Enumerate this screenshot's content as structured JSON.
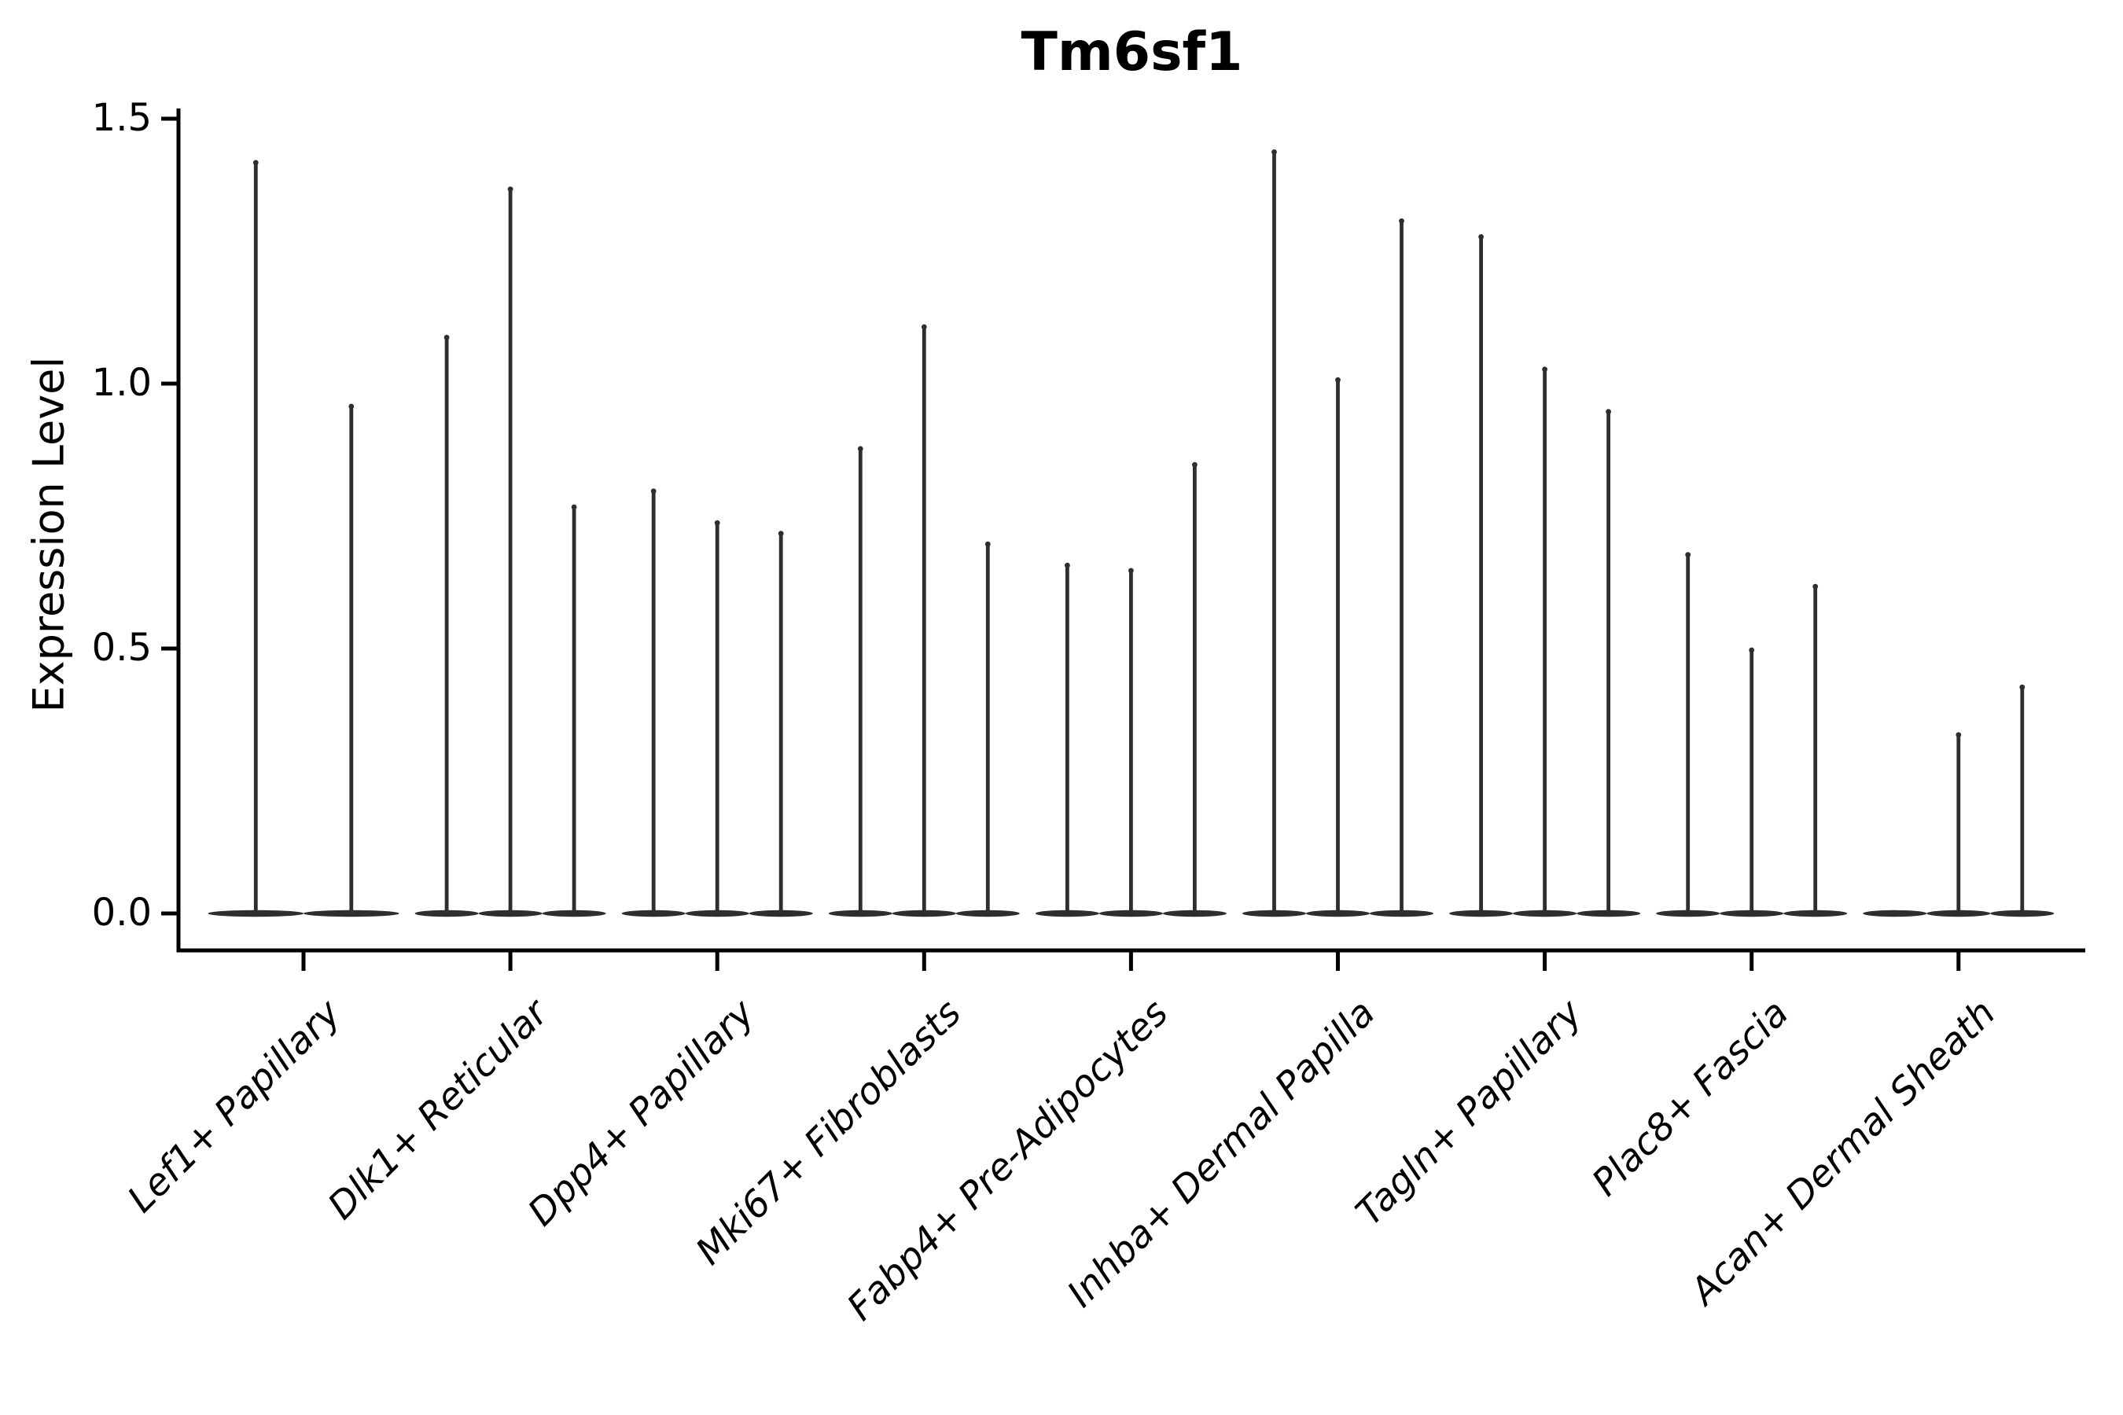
{
  "title": "Tm6sf1",
  "colors": {
    "violin": "#2e2e2e",
    "axis": "#000000",
    "text": "#000000",
    "background": "#ffffff"
  },
  "chart_data": {
    "type": "violin",
    "title": "Tm6sf1",
    "xlabel": "",
    "ylabel": "Expression Level",
    "yticks": [
      0.0,
      0.5,
      1.0,
      1.5
    ],
    "ylim": [
      -0.07,
      1.52
    ],
    "grid": false,
    "legend": "none",
    "description": "Needle-thin violins (sparse expression); each violin is a flat base at 0 with a thin spike to its maximum expression value.",
    "categories": [
      "Lef1+ Papillary",
      "Dlk1+ Reticular",
      "Dpp4+ Papillary",
      "Mki67+ Fibroblasts",
      "Fabp4+ Pre-Adipocytes",
      "Inhba+ Dermal Papilla",
      "Tagln+ Papillary",
      "Plac8+ Fascia",
      "Acan+ Dermal Sheath"
    ],
    "groups": [
      {
        "label": "Lef1+ Papillary",
        "violin_maxima": [
          1.42,
          0.96
        ]
      },
      {
        "label": "Dlk1+ Reticular",
        "violin_maxima": [
          1.09,
          1.37,
          0.77
        ]
      },
      {
        "label": "Dpp4+ Papillary",
        "violin_maxima": [
          0.8,
          0.74,
          0.72
        ]
      },
      {
        "label": "Mki67+ Fibroblasts",
        "violin_maxima": [
          0.88,
          1.11,
          0.7
        ]
      },
      {
        "label": "Fabp4+ Pre-Adipocytes",
        "violin_maxima": [
          0.66,
          0.65,
          0.85
        ]
      },
      {
        "label": "Inhba+ Dermal Papilla",
        "violin_maxima": [
          1.44,
          1.01,
          1.31
        ]
      },
      {
        "label": "Tagln+ Papillary",
        "violin_maxima": [
          1.28,
          1.03,
          0.95
        ]
      },
      {
        "label": "Plac8+ Fascia",
        "violin_maxima": [
          0.68,
          0.5,
          0.62
        ]
      },
      {
        "label": "Acan+ Dermal Sheath",
        "violin_maxima": [
          0.0,
          0.34,
          0.43
        ]
      }
    ]
  }
}
